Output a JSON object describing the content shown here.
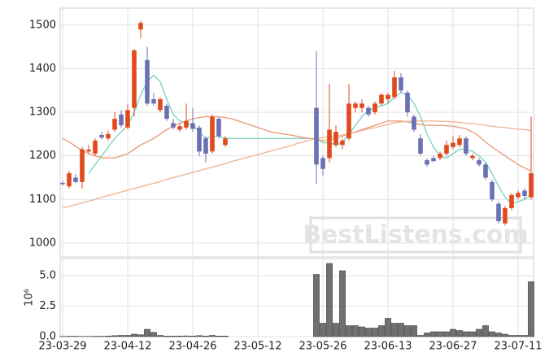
{
  "chart_data": {
    "type": "candlestick",
    "watermark": "BestListens.com",
    "categories": [
      "23-03-29",
      null,
      null,
      null,
      null,
      null,
      null,
      null,
      null,
      null,
      "23-04-12",
      null,
      null,
      null,
      null,
      null,
      null,
      null,
      null,
      null,
      "23-04-26",
      null,
      null,
      null,
      null,
      null,
      null,
      null,
      null,
      null,
      "23-05-12",
      null,
      null,
      null,
      null,
      null,
      null,
      null,
      null,
      null,
      "23-05-26",
      null,
      null,
      null,
      null,
      null,
      null,
      null,
      null,
      null,
      "23-06-13",
      null,
      null,
      null,
      null,
      null,
      null,
      null,
      null,
      null,
      "23-06-27",
      null,
      null,
      null,
      null,
      null,
      null,
      null,
      null,
      null,
      "23-07-11",
      null,
      null
    ],
    "open": [
      1138,
      1130,
      1150,
      1140,
      1210,
      1205,
      1248,
      1240,
      1260,
      1295,
      1265,
      1310,
      1490,
      1420,
      1330,
      1305,
      1315,
      1275,
      1260,
      1265,
      1275,
      1265,
      1240,
      1210,
      1285,
      1225,
      null,
      null,
      null,
      null,
      null,
      null,
      null,
      null,
      null,
      null,
      null,
      null,
      null,
      1310,
      1195,
      1195,
      1225,
      1225,
      1240,
      1310,
      1310,
      1310,
      1300,
      1320,
      1330,
      1335,
      1380,
      1345,
      1290,
      1240,
      1190,
      1195,
      1195,
      1205,
      1220,
      1225,
      1240,
      1195,
      1190,
      1180,
      1140,
      1090,
      1045,
      1080,
      1105,
      1120,
      1105
    ],
    "high": [
      1142,
      1165,
      1158,
      1220,
      1225,
      1240,
      1255,
      1258,
      1300,
      1305,
      1320,
      1445,
      1510,
      1450,
      1345,
      1335,
      1320,
      1285,
      1275,
      1320,
      1310,
      1270,
      1245,
      1295,
      1290,
      1245,
      null,
      null,
      null,
      null,
      null,
      null,
      null,
      null,
      null,
      null,
      null,
      null,
      null,
      1440,
      1200,
      1365,
      1270,
      1240,
      1365,
      1325,
      1330,
      1315,
      1325,
      1345,
      1345,
      1395,
      1390,
      1350,
      1295,
      1250,
      1195,
      1200,
      1210,
      1235,
      1245,
      1248,
      1245,
      1205,
      1195,
      1185,
      1145,
      1095,
      1085,
      1115,
      1120,
      1125,
      1290
    ],
    "low": [
      1132,
      1125,
      1138,
      1125,
      1205,
      1200,
      1238,
      1235,
      1255,
      1265,
      1260,
      1290,
      1470,
      1315,
      1315,
      1300,
      1280,
      1260,
      1255,
      1260,
      1255,
      1200,
      1185,
      1205,
      1240,
      1220,
      null,
      null,
      null,
      null,
      null,
      null,
      null,
      null,
      null,
      null,
      null,
      null,
      null,
      1135,
      1155,
      1185,
      1220,
      1215,
      1235,
      1300,
      1300,
      1290,
      1295,
      1315,
      1320,
      1330,
      1345,
      1290,
      1255,
      1200,
      1175,
      1185,
      1190,
      1200,
      1215,
      1220,
      1200,
      1190,
      1175,
      1145,
      1095,
      1045,
      1040,
      1075,
      1100,
      1100,
      1100
    ],
    "close": [
      1135,
      1160,
      1140,
      1215,
      1214,
      1235,
      1242,
      1250,
      1285,
      1270,
      1305,
      1442,
      1505,
      1320,
      1320,
      1330,
      1285,
      1265,
      1268,
      1280,
      1262,
      1210,
      1205,
      1290,
      1245,
      1240,
      null,
      null,
      null,
      null,
      null,
      null,
      null,
      null,
      null,
      null,
      null,
      null,
      null,
      1180,
      1170,
      1260,
      1255,
      1235,
      1320,
      1320,
      1320,
      1295,
      1320,
      1340,
      1340,
      1380,
      1350,
      1300,
      1260,
      1205,
      1180,
      1188,
      1205,
      1225,
      1230,
      1240,
      1205,
      1200,
      1180,
      1150,
      1100,
      1050,
      1080,
      1110,
      1115,
      1108,
      1160
    ],
    "up_color": "#e04a1c",
    "down_color": "#6b6fb3",
    "ylim": [
      968,
      1539
    ],
    "yticks": [
      1000,
      1100,
      1200,
      1300,
      1400,
      1500
    ],
    "moving_averages": [
      {
        "color": "#7fd3c0",
        "values": [
          null,
          null,
          null,
          null,
          1160,
          1180,
          1200,
          1220,
          1240,
          1255,
          1270,
          1300,
          1340,
          1370,
          1385,
          1370,
          1330,
          1295,
          1280,
          1275,
          1270,
          1255,
          1240,
          1245,
          1245,
          1240,
          1240,
          1240,
          1240,
          1240,
          1240,
          1240,
          1240,
          1240,
          1240,
          1240,
          1240,
          1240,
          1240,
          1240,
          1230,
          1230,
          1225,
          1230,
          1250,
          1270,
          1290,
          1305,
          1310,
          1315,
          1320,
          1335,
          1345,
          1340,
          1320,
          1290,
          1250,
          1220,
          1200,
          1195,
          1205,
          1215,
          1215,
          1210,
          1200,
          1185,
          1160,
          1130,
          1105,
          1090,
          1095,
          1100,
          1110
        ]
      },
      {
        "color": "#e9a07a",
        "values": [
          1240,
          1232,
          1222,
          1212,
          1205,
          1200,
          1196,
          1195,
          1195,
          1200,
          1205,
          1215,
          1225,
          1232,
          1240,
          1250,
          1260,
          1268,
          1275,
          1280,
          1285,
          1288,
          1290,
          1290,
          1290,
          1288,
          1285,
          1280,
          1275,
          1270,
          1265,
          1260,
          1255,
          1252,
          1250,
          1248,
          1245,
          1242,
          1240,
          1238,
          1235,
          1237,
          1240,
          1245,
          1250,
          1255,
          1260,
          1265,
          1270,
          1275,
          1280,
          1280,
          1280,
          1278,
          1275,
          1272,
          1270,
          1270,
          1270,
          1269,
          1268,
          1265,
          1262,
          1255,
          1245,
          1232,
          1220,
          1210,
          1200,
          1190,
          1180,
          1172,
          1165
        ]
      },
      {
        "color": "#f0b796",
        "values": [
          1080,
          1084,
          1088,
          1092,
          1096,
          1100,
          1105,
          1109,
          1113,
          1117,
          1121,
          1125,
          1129,
          1133,
          1137,
          1141,
          1146,
          1150,
          1154,
          1158,
          1162,
          1166,
          1170,
          1174,
          1178,
          1182,
          1187,
          1191,
          1195,
          1199,
          1203,
          1207,
          1211,
          1215,
          1219,
          1223,
          1228,
          1232,
          1236,
          1240,
          1242,
          1244,
          1246,
          1248,
          1250,
          1254,
          1258,
          1262,
          1265,
          1268,
          1272,
          1276,
          1278,
          1279,
          1280,
          1280,
          1280,
          1280,
          1279,
          1279,
          1278,
          1277,
          1275,
          1274,
          1272,
          1270,
          1268,
          1266,
          1265,
          1263,
          1261,
          1260,
          1258
        ]
      }
    ],
    "volume": {
      "ylabel": "10⁶",
      "color": "#707070",
      "ylim": [
        0,
        6.4
      ],
      "yticks": [
        {
          "value": 0,
          "label": "0.0"
        },
        {
          "value": 2.5,
          "label": "2.5"
        },
        {
          "value": 5,
          "label": "5.0"
        }
      ],
      "values": [
        0.02,
        0.03,
        0.03,
        0.02,
        0.02,
        0.03,
        0.03,
        0.05,
        0.08,
        0.1,
        0.1,
        0.2,
        0.15,
        0.6,
        0.35,
        0.1,
        0.05,
        0.05,
        0.05,
        0.06,
        0.05,
        0.08,
        0.05,
        0.1,
        0.05,
        0.05,
        null,
        null,
        null,
        null,
        null,
        null,
        null,
        null,
        null,
        null,
        null,
        null,
        null,
        5.1,
        1.1,
        6.0,
        1.1,
        5.4,
        0.9,
        0.9,
        0.8,
        0.7,
        0.7,
        0.9,
        1.5,
        1.1,
        1.1,
        0.9,
        0.9,
        0.1,
        0.3,
        0.4,
        0.4,
        0.4,
        0.6,
        0.5,
        0.4,
        0.4,
        0.6,
        0.9,
        0.4,
        0.3,
        0.2,
        0.1,
        0.1,
        0.1,
        4.5
      ]
    }
  }
}
